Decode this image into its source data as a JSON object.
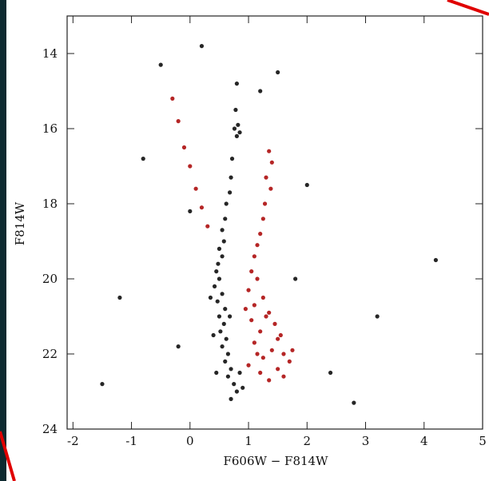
{
  "chart_data": {
    "type": "scatter",
    "xlabel": "F606W − F814W",
    "ylabel": "F814W",
    "xlim": [
      -2.1,
      5.0
    ],
    "ylim": [
      24,
      13
    ],
    "xticks": [
      -2,
      -1,
      0,
      1,
      2,
      3,
      4,
      5
    ],
    "yticks": [
      14,
      16,
      18,
      20,
      22,
      24
    ],
    "series": [
      {
        "color": "#000000",
        "x": [
          0.8,
          0.78,
          0.82,
          0.76,
          0.85,
          0.8,
          0.72,
          0.7,
          0.68,
          0.62,
          0.6,
          0.55,
          0.58,
          0.5,
          0.55,
          0.48,
          0.45,
          0.5,
          0.42,
          0.55,
          0.47,
          0.6,
          0.5,
          0.58,
          0.52,
          0.62,
          0.55,
          0.65,
          0.6,
          0.7,
          0.65,
          0.75,
          0.8,
          0.7,
          0.9,
          0.4,
          0.68,
          0.45,
          0.85,
          0.35,
          -0.5,
          0.2,
          1.5,
          -1.2,
          3.2,
          2.4,
          -0.2,
          2.0,
          -1.5,
          4.2,
          1.2,
          0.0,
          2.8,
          -0.8,
          1.8
        ],
        "values": [
          14.8,
          15.5,
          15.9,
          16.0,
          16.1,
          16.2,
          16.8,
          17.3,
          17.7,
          18.0,
          18.4,
          18.7,
          19.0,
          19.2,
          19.4,
          19.6,
          19.8,
          20.0,
          20.2,
          20.4,
          20.6,
          20.8,
          21.0,
          21.2,
          21.4,
          21.6,
          21.8,
          22.0,
          22.2,
          22.4,
          22.6,
          22.8,
          23.0,
          23.2,
          22.9,
          21.5,
          21.0,
          22.5,
          22.5,
          20.5,
          14.3,
          13.8,
          14.5,
          20.5,
          21.0,
          22.5,
          21.8,
          17.5,
          22.8,
          19.5,
          15.0,
          18.2,
          23.3,
          16.8,
          20.0
        ]
      },
      {
        "color": "#a80000",
        "x": [
          1.35,
          1.4,
          1.3,
          1.38,
          1.28,
          1.25,
          1.2,
          1.15,
          1.1,
          -0.3,
          -0.2,
          -0.1,
          0.0,
          0.1,
          0.2,
          0.3,
          1.05,
          1.15,
          1.0,
          1.25,
          1.1,
          1.35,
          1.05,
          1.45,
          1.2,
          1.5,
          1.1,
          1.4,
          1.6,
          1.25,
          1.7,
          1.5,
          1.2,
          1.35,
          1.6,
          1.0,
          1.3,
          1.55,
          1.15,
          0.95,
          1.75
        ],
        "values": [
          16.6,
          16.9,
          17.3,
          17.6,
          18.0,
          18.4,
          18.8,
          19.1,
          19.4,
          15.2,
          15.8,
          16.5,
          17.0,
          17.6,
          18.1,
          18.6,
          19.8,
          20.0,
          20.3,
          20.5,
          20.7,
          20.9,
          21.1,
          21.2,
          21.4,
          21.6,
          21.7,
          21.9,
          22.0,
          22.1,
          22.2,
          22.4,
          22.5,
          22.7,
          22.6,
          22.3,
          21.0,
          21.5,
          22.0,
          20.8,
          21.9
        ]
      }
    ]
  }
}
